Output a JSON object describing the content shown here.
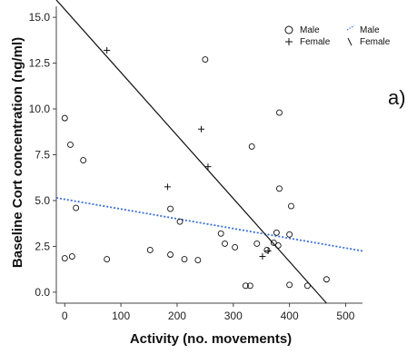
{
  "chart_data": {
    "type": "scatter",
    "title": "",
    "xlabel": "Activity (no. movements)",
    "ylabel": "Baseline Cort concentration (ng/ml)",
    "panel_label": "a)",
    "xlim": [
      -15,
      530
    ],
    "ylim": [
      -0.6,
      15.6
    ],
    "x_ticks": [
      0,
      100,
      200,
      300,
      400,
      500
    ],
    "y_ticks": [
      0.0,
      2.5,
      5.0,
      7.5,
      10.0,
      12.5,
      15.0
    ],
    "y_tick_labels": [
      "0.0",
      "2.5",
      "5.0",
      "7.5",
      "10.0",
      "12.5",
      "15.0"
    ],
    "grid": false,
    "legend_placement": "top-right",
    "legend": [
      {
        "series": "Male",
        "marker": "circle",
        "label": "Male"
      },
      {
        "series": "Male",
        "marker": "dotted-line",
        "label": "Male"
      },
      {
        "series": "Female",
        "marker": "plus",
        "label": "Female"
      },
      {
        "series": "Female",
        "marker": "solid-line",
        "label": "Female"
      }
    ],
    "series": [
      {
        "name": "Male",
        "marker": "circle",
        "points": [
          [
            0,
            9.5
          ],
          [
            10,
            8.05
          ],
          [
            33,
            7.2
          ],
          [
            20,
            4.6
          ],
          [
            0,
            1.85
          ],
          [
            13,
            1.95
          ],
          [
            75,
            1.8
          ],
          [
            152,
            2.3
          ],
          [
            188,
            4.55
          ],
          [
            188,
            2.05
          ],
          [
            205,
            3.85
          ],
          [
            213,
            1.8
          ],
          [
            237,
            1.75
          ],
          [
            250,
            12.7
          ],
          [
            278,
            3.2
          ],
          [
            285,
            2.65
          ],
          [
            303,
            2.45
          ],
          [
            322,
            0.35
          ],
          [
            330,
            0.35
          ],
          [
            333,
            7.95
          ],
          [
            342,
            2.65
          ],
          [
            360,
            2.3
          ],
          [
            372,
            2.7
          ],
          [
            377,
            3.25
          ],
          [
            380,
            2.55
          ],
          [
            382,
            9.8
          ],
          [
            382,
            5.65
          ],
          [
            400,
            3.15
          ],
          [
            403,
            4.7
          ],
          [
            400,
            0.4
          ],
          [
            432,
            0.35
          ],
          [
            466,
            0.7
          ]
        ]
      },
      {
        "name": "Female",
        "marker": "plus",
        "points": [
          [
            75,
            13.2
          ],
          [
            243,
            8.9
          ],
          [
            255,
            6.85
          ],
          [
            183,
            5.75
          ],
          [
            362,
            2.25
          ],
          [
            352,
            1.95
          ]
        ]
      }
    ],
    "fit_lines": [
      {
        "series": "Male",
        "style": "dotted",
        "color": "#3b6fd4",
        "x": [
          -15,
          530
        ],
        "y": [
          5.15,
          2.25
        ]
      },
      {
        "series": "Female",
        "style": "solid",
        "color": "#111111",
        "x": [
          -15,
          466
        ],
        "y": [
          15.95,
          -0.6
        ]
      }
    ]
  }
}
